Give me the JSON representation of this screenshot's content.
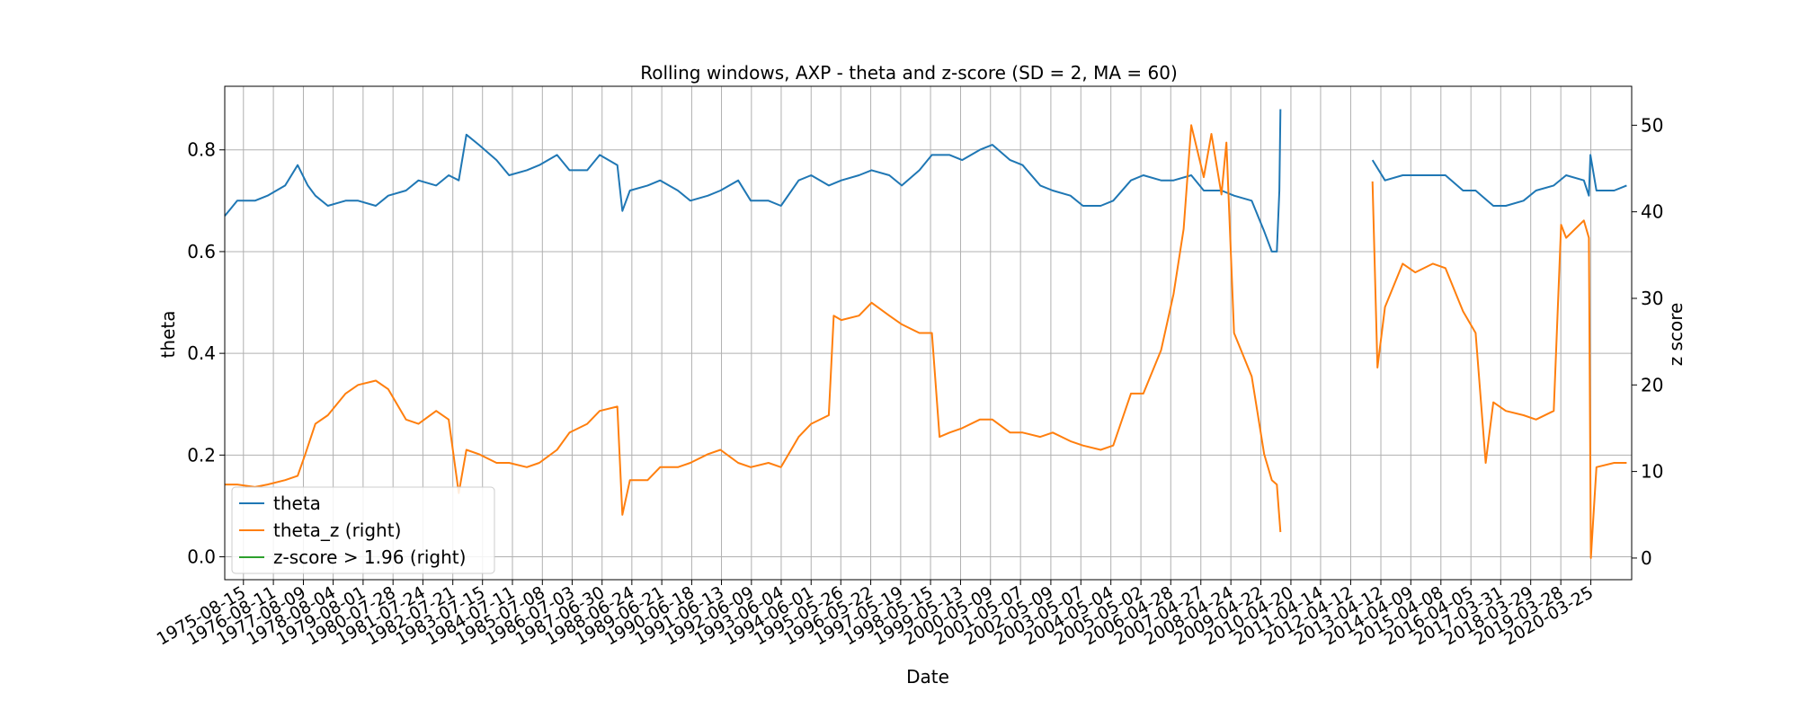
{
  "chart_data": {
    "type": "line",
    "title": "Rolling windows, AXP - theta and z-score (SD = 2, MA = 60)",
    "xlabel": "Date",
    "ylabel_left": "theta",
    "ylabel_right": "z score",
    "x_range": [
      "1975-01-01",
      "2021-08-01"
    ],
    "ylim_left": [
      -0.045,
      0.925
    ],
    "ylim_right": [
      -2.5,
      54.5
    ],
    "yticks_left": [
      "0.0",
      "0.2",
      "0.4",
      "0.6",
      "0.8"
    ],
    "yticks_right": [
      "0",
      "10",
      "20",
      "30",
      "40",
      "50"
    ],
    "x_tick_labels": [
      "1975-08-15",
      "1976-08-11",
      "1977-08-09",
      "1978-08-04",
      "1979-08-01",
      "1980-07-28",
      "1981-07-24",
      "1982-07-21",
      "1983-07-15",
      "1984-07-11",
      "1985-07-08",
      "1986-07-03",
      "1987-06-30",
      "1988-06-24",
      "1989-06-21",
      "1990-06-18",
      "1991-06-13",
      "1992-06-09",
      "1993-06-04",
      "1994-06-01",
      "1995-05-26",
      "1996-05-22",
      "1997-05-19",
      "1998-05-15",
      "1999-05-13",
      "2000-05-09",
      "2001-05-07",
      "2002-05-09",
      "2003-05-07",
      "2004-05-04",
      "2005-05-02",
      "2006-04-28",
      "2007-04-27",
      "2008-04-24",
      "2009-04-22",
      "2010-04-20",
      "2011-04-14",
      "2012-04-12",
      "2013-04-12",
      "2014-04-09",
      "2015-04-08",
      "2016-04-05",
      "2017-03-31",
      "2018-03-29",
      "2019-03-28",
      "2020-03-25"
    ],
    "grid": true,
    "legend_position": "lower-left",
    "series": [
      {
        "name": "theta",
        "axis": "left",
        "color": "#1f77b4",
        "points": [
          [
            "1975-01-01",
            0.67
          ],
          [
            "1975-06-01",
            0.7
          ],
          [
            "1976-01-01",
            0.7
          ],
          [
            "1976-06-01",
            0.71
          ],
          [
            "1977-01-01",
            0.73
          ],
          [
            "1977-06-01",
            0.77
          ],
          [
            "1977-10-01",
            0.73
          ],
          [
            "1978-01-01",
            0.71
          ],
          [
            "1978-06-01",
            0.69
          ],
          [
            "1979-01-01",
            0.7
          ],
          [
            "1979-06-01",
            0.7
          ],
          [
            "1980-01-01",
            0.69
          ],
          [
            "1980-06-01",
            0.71
          ],
          [
            "1981-01-01",
            0.72
          ],
          [
            "1981-06-01",
            0.74
          ],
          [
            "1982-01-01",
            0.73
          ],
          [
            "1982-06-01",
            0.75
          ],
          [
            "1982-10-01",
            0.74
          ],
          [
            "1983-01-01",
            0.83
          ],
          [
            "1983-06-01",
            0.81
          ],
          [
            "1984-01-01",
            0.78
          ],
          [
            "1984-06-01",
            0.75
          ],
          [
            "1985-01-01",
            0.76
          ],
          [
            "1985-06-01",
            0.77
          ],
          [
            "1986-01-01",
            0.79
          ],
          [
            "1986-06-01",
            0.76
          ],
          [
            "1987-01-01",
            0.76
          ],
          [
            "1987-06-01",
            0.79
          ],
          [
            "1988-01-01",
            0.77
          ],
          [
            "1988-03-01",
            0.68
          ],
          [
            "1988-06-01",
            0.72
          ],
          [
            "1989-01-01",
            0.73
          ],
          [
            "1989-06-01",
            0.74
          ],
          [
            "1990-01-01",
            0.72
          ],
          [
            "1990-06-01",
            0.7
          ],
          [
            "1991-01-01",
            0.71
          ],
          [
            "1991-06-01",
            0.72
          ],
          [
            "1992-01-01",
            0.74
          ],
          [
            "1992-06-01",
            0.7
          ],
          [
            "1993-01-01",
            0.7
          ],
          [
            "1993-06-01",
            0.69
          ],
          [
            "1994-01-01",
            0.74
          ],
          [
            "1994-06-01",
            0.75
          ],
          [
            "1995-01-01",
            0.73
          ],
          [
            "1995-06-01",
            0.74
          ],
          [
            "1996-01-01",
            0.75
          ],
          [
            "1996-06-01",
            0.76
          ],
          [
            "1997-01-01",
            0.75
          ],
          [
            "1997-06-01",
            0.73
          ],
          [
            "1998-01-01",
            0.76
          ],
          [
            "1998-06-01",
            0.79
          ],
          [
            "1999-01-01",
            0.79
          ],
          [
            "1999-06-01",
            0.78
          ],
          [
            "2000-01-01",
            0.8
          ],
          [
            "2000-06-01",
            0.81
          ],
          [
            "2001-01-01",
            0.78
          ],
          [
            "2001-06-01",
            0.77
          ],
          [
            "2002-01-01",
            0.73
          ],
          [
            "2002-06-01",
            0.72
          ],
          [
            "2003-01-01",
            0.71
          ],
          [
            "2003-06-01",
            0.69
          ],
          [
            "2004-01-01",
            0.69
          ],
          [
            "2004-06-01",
            0.7
          ],
          [
            "2005-01-01",
            0.74
          ],
          [
            "2005-06-01",
            0.75
          ],
          [
            "2006-01-01",
            0.74
          ],
          [
            "2006-06-01",
            0.74
          ],
          [
            "2007-01-01",
            0.75
          ],
          [
            "2007-06-01",
            0.72
          ],
          [
            "2008-01-01",
            0.72
          ],
          [
            "2008-06-01",
            0.71
          ],
          [
            "2009-01-01",
            0.7
          ],
          [
            "2009-06-01",
            0.64
          ],
          [
            "2009-09-01",
            0.6
          ],
          [
            "2009-11-01",
            0.6
          ],
          [
            "2009-12-01",
            0.72
          ],
          [
            "2009-12-15",
            0.88
          ],
          [
            "2013-01-01",
            0.78
          ],
          [
            "2013-06-01",
            0.74
          ],
          [
            "2014-01-01",
            0.75
          ],
          [
            "2014-06-01",
            0.75
          ],
          [
            "2015-01-01",
            0.75
          ],
          [
            "2015-06-01",
            0.75
          ],
          [
            "2016-01-01",
            0.72
          ],
          [
            "2016-06-01",
            0.72
          ],
          [
            "2017-01-01",
            0.69
          ],
          [
            "2017-06-01",
            0.69
          ],
          [
            "2018-01-01",
            0.7
          ],
          [
            "2018-06-01",
            0.72
          ],
          [
            "2019-01-01",
            0.73
          ],
          [
            "2019-06-01",
            0.75
          ],
          [
            "2020-01-01",
            0.74
          ],
          [
            "2020-03-01",
            0.71
          ],
          [
            "2020-03-20",
            0.79
          ],
          [
            "2020-06-01",
            0.72
          ],
          [
            "2021-01-01",
            0.72
          ],
          [
            "2021-06-01",
            0.73
          ]
        ]
      },
      {
        "name": "theta_z (right)",
        "axis": "right",
        "color": "#ff7f0e",
        "points": [
          [
            "1975-01-01",
            8.5
          ],
          [
            "1975-06-01",
            8.5
          ],
          [
            "1976-01-01",
            8.2
          ],
          [
            "1976-06-01",
            8.5
          ],
          [
            "1977-01-01",
            9.0
          ],
          [
            "1977-06-01",
            9.5
          ],
          [
            "1977-09-01",
            12.0
          ],
          [
            "1978-01-01",
            15.5
          ],
          [
            "1978-06-01",
            16.5
          ],
          [
            "1979-01-01",
            19.0
          ],
          [
            "1979-06-01",
            20.0
          ],
          [
            "1980-01-01",
            20.5
          ],
          [
            "1980-06-01",
            19.5
          ],
          [
            "1981-01-01",
            16.0
          ],
          [
            "1981-06-01",
            15.5
          ],
          [
            "1982-01-01",
            17.0
          ],
          [
            "1982-06-01",
            16.0
          ],
          [
            "1982-10-01",
            7.5
          ],
          [
            "1983-01-01",
            12.5
          ],
          [
            "1983-06-01",
            12.0
          ],
          [
            "1984-01-01",
            11.0
          ],
          [
            "1984-06-01",
            11.0
          ],
          [
            "1985-01-01",
            10.5
          ],
          [
            "1985-06-01",
            11.0
          ],
          [
            "1986-01-01",
            12.5
          ],
          [
            "1986-06-01",
            14.5
          ],
          [
            "1987-01-01",
            15.5
          ],
          [
            "1987-06-01",
            17.0
          ],
          [
            "1988-01-01",
            17.5
          ],
          [
            "1988-03-01",
            5.0
          ],
          [
            "1988-06-01",
            9.0
          ],
          [
            "1989-01-01",
            9.0
          ],
          [
            "1989-06-01",
            10.5
          ],
          [
            "1990-01-01",
            10.5
          ],
          [
            "1990-06-01",
            11.0
          ],
          [
            "1991-01-01",
            12.0
          ],
          [
            "1991-06-01",
            12.5
          ],
          [
            "1992-01-01",
            11.0
          ],
          [
            "1992-06-01",
            10.5
          ],
          [
            "1993-01-01",
            11.0
          ],
          [
            "1993-06-01",
            10.5
          ],
          [
            "1994-01-01",
            14.0
          ],
          [
            "1994-06-01",
            15.5
          ],
          [
            "1995-01-01",
            16.5
          ],
          [
            "1995-03-01",
            28.0
          ],
          [
            "1995-06-01",
            27.5
          ],
          [
            "1996-01-01",
            28.0
          ],
          [
            "1996-06-01",
            29.5
          ],
          [
            "1997-01-01",
            28.0
          ],
          [
            "1997-06-01",
            27.0
          ],
          [
            "1998-01-01",
            26.0
          ],
          [
            "1998-06-01",
            26.0
          ],
          [
            "1998-09-01",
            14.0
          ],
          [
            "1999-01-01",
            14.5
          ],
          [
            "1999-06-01",
            15.0
          ],
          [
            "2000-01-01",
            16.0
          ],
          [
            "2000-06-01",
            16.0
          ],
          [
            "2001-01-01",
            14.5
          ],
          [
            "2001-06-01",
            14.5
          ],
          [
            "2002-01-01",
            14.0
          ],
          [
            "2002-06-01",
            14.5
          ],
          [
            "2003-01-01",
            13.5
          ],
          [
            "2003-06-01",
            13.0
          ],
          [
            "2004-01-01",
            12.5
          ],
          [
            "2004-06-01",
            13.0
          ],
          [
            "2005-01-01",
            19.0
          ],
          [
            "2005-06-01",
            19.0
          ],
          [
            "2006-01-01",
            24.0
          ],
          [
            "2006-06-01",
            30.5
          ],
          [
            "2006-10-01",
            38.0
          ],
          [
            "2007-01-01",
            50.0
          ],
          [
            "2007-06-01",
            44.0
          ],
          [
            "2007-09-01",
            49.0
          ],
          [
            "2008-01-01",
            42.0
          ],
          [
            "2008-03-01",
            48.0
          ],
          [
            "2008-06-01",
            26.0
          ],
          [
            "2009-01-01",
            21.0
          ],
          [
            "2009-06-01",
            12.0
          ],
          [
            "2009-09-01",
            9.0
          ],
          [
            "2009-11-01",
            8.5
          ],
          [
            "2009-12-15",
            3.0
          ],
          [
            "2013-01-01",
            43.5
          ],
          [
            "2013-03-01",
            22.0
          ],
          [
            "2013-06-01",
            29.0
          ],
          [
            "2014-01-01",
            34.0
          ],
          [
            "2014-06-01",
            33.0
          ],
          [
            "2015-01-01",
            34.0
          ],
          [
            "2015-06-01",
            33.5
          ],
          [
            "2016-01-01",
            28.5
          ],
          [
            "2016-06-01",
            26.0
          ],
          [
            "2016-10-01",
            11.0
          ],
          [
            "2017-01-01",
            18.0
          ],
          [
            "2017-06-01",
            17.0
          ],
          [
            "2018-01-01",
            16.5
          ],
          [
            "2018-06-01",
            16.0
          ],
          [
            "2019-01-01",
            17.0
          ],
          [
            "2019-04-01",
            38.5
          ],
          [
            "2019-06-01",
            37.0
          ],
          [
            "2020-01-01",
            39.0
          ],
          [
            "2020-03-01",
            37.0
          ],
          [
            "2020-03-25",
            0.0
          ],
          [
            "2020-06-01",
            10.5
          ],
          [
            "2021-01-01",
            11.0
          ],
          [
            "2021-06-01",
            11.0
          ]
        ]
      },
      {
        "name": "z-score > 1.96 (right)",
        "axis": "right",
        "color": "#2ca02c",
        "points": [
          [
            "1975-01-01",
            1.96
          ],
          [
            "2021-08-01",
            1.96
          ]
        ]
      }
    ]
  }
}
